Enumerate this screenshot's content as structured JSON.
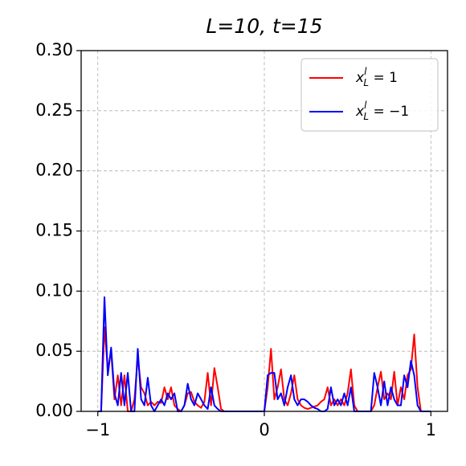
{
  "chart_data": {
    "type": "line",
    "title": "L=10, t=15",
    "x": [
      -1.0,
      -0.98,
      -0.96,
      -0.94,
      -0.92,
      -0.9,
      -0.88,
      -0.86,
      -0.84,
      -0.82,
      -0.8,
      -0.78,
      -0.76,
      -0.74,
      -0.72,
      -0.7,
      -0.68,
      -0.66,
      -0.64,
      -0.62,
      -0.6,
      -0.58,
      -0.56,
      -0.54,
      -0.52,
      -0.5,
      -0.48,
      -0.46,
      -0.44,
      -0.42,
      -0.4,
      -0.38,
      -0.36,
      -0.34,
      -0.32,
      -0.3,
      -0.28,
      -0.26,
      -0.24,
      -0.22,
      -0.2,
      -0.18,
      -0.16,
      -0.14,
      -0.12,
      -0.1,
      -0.08,
      -0.06,
      -0.04,
      -0.02,
      0.0,
      0.02,
      0.04,
      0.06,
      0.08,
      0.1,
      0.12,
      0.14,
      0.16,
      0.18,
      0.2,
      0.22,
      0.24,
      0.26,
      0.28,
      0.3,
      0.32,
      0.34,
      0.36,
      0.38,
      0.4,
      0.42,
      0.44,
      0.46,
      0.48,
      0.5,
      0.52,
      0.54,
      0.56,
      0.58,
      0.6,
      0.62,
      0.64,
      0.66,
      0.68,
      0.7,
      0.72,
      0.74,
      0.76,
      0.78,
      0.8,
      0.82,
      0.84,
      0.86,
      0.88,
      0.9,
      0.92,
      0.94,
      0.96,
      0.98,
      1.0
    ],
    "series": [
      {
        "name": "x_L^l = 1",
        "color": "#ff0000",
        "values": [
          0,
          0,
          0.07,
          0.035,
          0.05,
          0.01,
          0.03,
          0.005,
          0.03,
          0,
          0,
          0.01,
          0.045,
          0.02,
          0.015,
          0.005,
          0.008,
          0.005,
          0.008,
          0.007,
          0.02,
          0.01,
          0.02,
          0.005,
          0.002,
          0,
          0.005,
          0.015,
          0.016,
          0.008,
          0.005,
          0.003,
          0.008,
          0.032,
          0.005,
          0.036,
          0.02,
          0.002,
          0,
          0,
          0,
          0,
          0,
          0,
          0,
          0,
          0,
          0,
          0,
          0,
          0,
          0.02,
          0.052,
          0.01,
          0.02,
          0.035,
          0.01,
          0.005,
          0.015,
          0.03,
          0.01,
          0.005,
          0.003,
          0.002,
          0.003,
          0.004,
          0.005,
          0.008,
          0.01,
          0.02,
          0.005,
          0.01,
          0.005,
          0.01,
          0.005,
          0.015,
          0.035,
          0.005,
          0,
          0,
          0,
          0,
          0,
          0.005,
          0.02,
          0.033,
          0.01,
          0.015,
          0.01,
          0.033,
          0.005,
          0.02,
          0.01,
          0.03,
          0.035,
          0.064,
          0.02,
          0,
          0,
          0,
          0
        ]
      },
      {
        "name": "x_L^l = -1",
        "color": "#0000ff",
        "values": [
          0,
          0,
          0.095,
          0.03,
          0.053,
          0.015,
          0.005,
          0.032,
          0.005,
          0.032,
          0,
          0,
          0.052,
          0.01,
          0.005,
          0.028,
          0.005,
          0,
          0.005,
          0.01,
          0.005,
          0.015,
          0.01,
          0.015,
          0,
          0,
          0.005,
          0.023,
          0.01,
          0.005,
          0.015,
          0.01,
          0.005,
          0.002,
          0.02,
          0.005,
          0.002,
          0,
          0,
          0,
          0,
          0,
          0,
          0,
          0,
          0,
          0,
          0,
          0,
          0,
          0,
          0.03,
          0.032,
          0.032,
          0.01,
          0.015,
          0.005,
          0.02,
          0.03,
          0.01,
          0.005,
          0.01,
          0.01,
          0.008,
          0.005,
          0.003,
          0.002,
          0,
          0,
          0.002,
          0.02,
          0.005,
          0.01,
          0.005,
          0.015,
          0.005,
          0.02,
          0,
          0,
          0,
          0,
          0,
          0,
          0.032,
          0.02,
          0.005,
          0.025,
          0.005,
          0.02,
          0.01,
          0.005,
          0.005,
          0.03,
          0.02,
          0.042,
          0.03,
          0.005,
          0,
          0,
          0,
          0
        ]
      }
    ],
    "xlim": [
      -1.1,
      1.1
    ],
    "ylim": [
      0,
      0.3
    ],
    "xticks": [
      {
        "value": -1,
        "label": "−1"
      },
      0,
      1
    ],
    "yticks": [
      {
        "value": 0,
        "label": "0.00"
      },
      {
        "value": 0.05,
        "label": "0.05"
      },
      {
        "value": 0.1,
        "label": "0.10"
      },
      {
        "value": 0.15,
        "label": "0.15"
      },
      {
        "value": 0.2,
        "label": "0.20"
      },
      {
        "value": 0.25,
        "label": "0.25"
      },
      {
        "value": 0.3,
        "label": "0.30"
      }
    ],
    "grid": true,
    "legend": "upper right"
  }
}
